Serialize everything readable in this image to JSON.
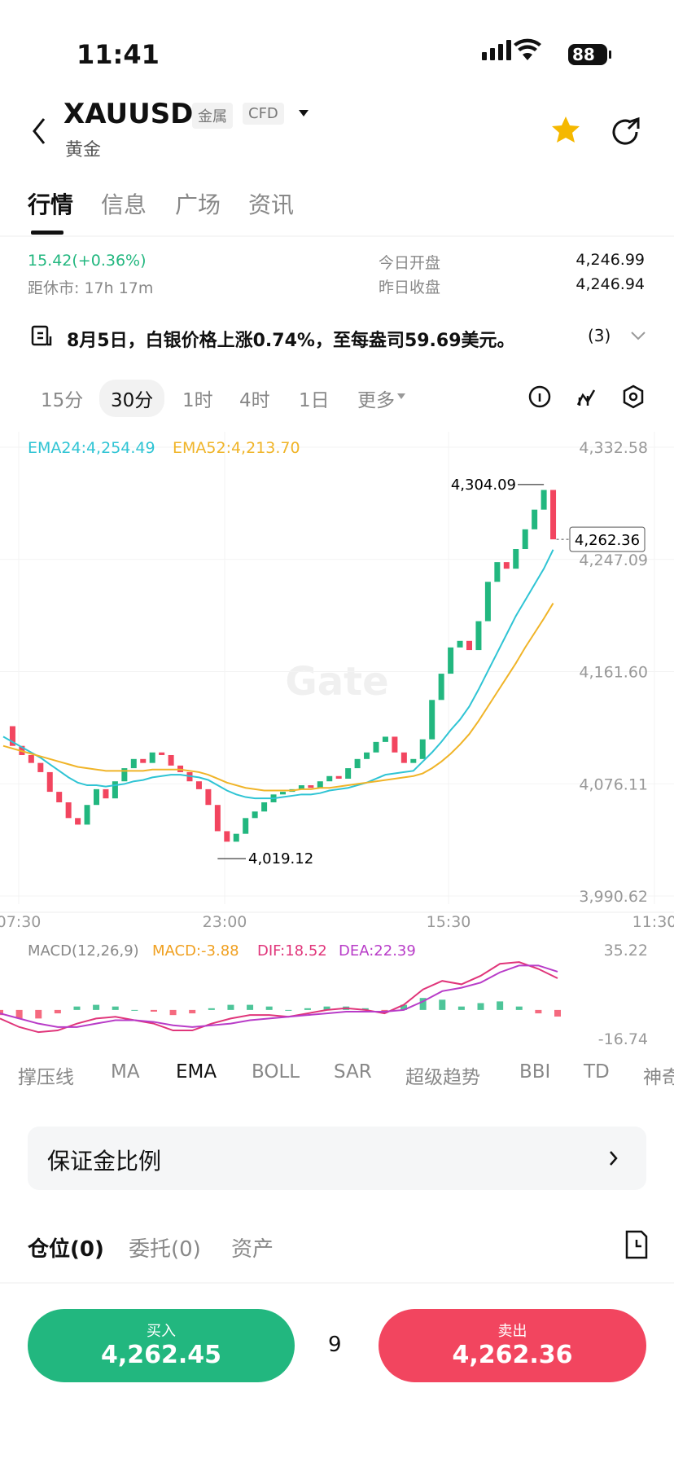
{
  "status_bar": {
    "time": "11:41",
    "battery": "88"
  },
  "header": {
    "symbol": "XAUUSD",
    "tags": [
      "金属",
      "CFD"
    ],
    "name": "黄金"
  },
  "tabs": {
    "items": [
      "行情",
      "信息",
      "广场",
      "资讯"
    ],
    "selected": 0
  },
  "summary": {
    "change": "15.42(+0.36%)",
    "close_in": "距休市: 17h 17m",
    "rows": [
      {
        "label": "今日开盘",
        "value": "4,246.99"
      },
      {
        "label": "昨日收盘",
        "value": "4,246.94"
      }
    ]
  },
  "news": {
    "text": "8月5日，白银价格上涨0.74%，至每盎司59.69美元。",
    "count": "(3)"
  },
  "timeframes": {
    "items": [
      "15分",
      "30分",
      "1时",
      "4时",
      "1日",
      "更多"
    ],
    "selected": 1
  },
  "chart": {
    "watermark": "Gate",
    "xticks": [
      "07:30",
      "23:00",
      "15:30",
      "11:30"
    ],
    "price": {
      "ylim": [
        3990.62,
        4332.58
      ],
      "yticks": [
        {
          "value": 4332.58,
          "label": "4,332.58"
        },
        {
          "value": 4247.09,
          "label": "4,247.09"
        },
        {
          "value": 4161.6,
          "label": "4,161.60"
        },
        {
          "value": 4076.11,
          "label": "4,076.11"
        },
        {
          "value": 3990.62,
          "label": "3,990.62"
        }
      ],
      "up_color": "#22b77f",
      "down_color": "#f2455f",
      "close": [
        4120,
        4105,
        4098,
        4092,
        4085,
        4070,
        4062,
        4050,
        4045,
        4060,
        4072,
        4065,
        4078,
        4088,
        4095,
        4092,
        4100,
        4098,
        4090,
        4085,
        4078,
        4072,
        4060,
        4040,
        4032,
        4038,
        4050,
        4055,
        4062,
        4068,
        4070,
        4072,
        4075,
        4073,
        4078,
        4082,
        4080,
        4088,
        4095,
        4100,
        4108,
        4112,
        4100,
        4092,
        4095,
        4110,
        4140,
        4160,
        4180,
        4185,
        4178,
        4200,
        4230,
        4245,
        4240,
        4255,
        4270,
        4285,
        4300,
        4262.36
      ],
      "series": [
        {
          "name": "EMA24:4,254.49",
          "color": "#2fc4d4",
          "values": [
            4112,
            4108,
            4104,
            4100,
            4096,
            4091,
            4086,
            4081,
            4077,
            4075,
            4075,
            4074,
            4075,
            4076,
            4078,
            4079,
            4081,
            4082,
            4083,
            4083,
            4082,
            4081,
            4079,
            4075,
            4071,
            4068,
            4066,
            4065,
            4065,
            4065,
            4066,
            4067,
            4068,
            4068,
            4069,
            4071,
            4072,
            4073,
            4075,
            4077,
            4080,
            4083,
            4084,
            4085,
            4086,
            4093,
            4100,
            4108,
            4117,
            4125,
            4135,
            4148,
            4162,
            4176,
            4190,
            4204,
            4216,
            4228,
            4240,
            4254.49
          ]
        },
        {
          "name": "EMA52:4,213.70",
          "color": "#f0b428",
          "values": [
            4105,
            4103,
            4101,
            4099,
            4097,
            4095,
            4093,
            4091,
            4089,
            4088,
            4087,
            4086,
            4086,
            4086,
            4086,
            4086,
            4087,
            4087,
            4087,
            4087,
            4086,
            4085,
            4083,
            4080,
            4077,
            4075,
            4073,
            4072,
            4071,
            4071,
            4071,
            4071,
            4072,
            4072,
            4073,
            4073,
            4074,
            4075,
            4076,
            4077,
            4078,
            4079,
            4080,
            4081,
            4082,
            4084,
            4088,
            4093,
            4099,
            4106,
            4114,
            4124,
            4135,
            4146,
            4157,
            4168,
            4180,
            4191,
            4202,
            4213.7
          ]
        }
      ],
      "high": {
        "value": 4304.09,
        "label": "4,304.09"
      },
      "low": {
        "value": 4019.12,
        "label": "4,019.12"
      },
      "last": {
        "value": 4262.36,
        "label": "4,262.36"
      }
    },
    "macd": {
      "title": "MACD(12,26,9)",
      "ylim": [
        -16.74,
        35.22
      ],
      "yticks": [
        35.22,
        -16.74
      ],
      "hist": {
        "name": "MACD:-3.88",
        "color": "#f0a020",
        "up_color": "#22b77f",
        "down_color": "#f2455f",
        "values": [
          -3,
          -5,
          -5,
          -2,
          2,
          3,
          2,
          0,
          -1,
          -3,
          -2,
          1,
          3,
          3,
          2,
          0,
          1,
          2,
          2,
          1,
          -1,
          3,
          7,
          6,
          2,
          4,
          5,
          2,
          -2,
          -3.88
        ]
      },
      "series": [
        {
          "name": "DIF:18.52",
          "color": "#e0357a",
          "values": [
            -5,
            -10,
            -13,
            -12,
            -8,
            -5,
            -4,
            -6,
            -8,
            -12,
            -12,
            -8,
            -5,
            -3,
            -3,
            -4,
            -2,
            0,
            1,
            0,
            -2,
            3,
            12,
            17,
            15,
            20,
            27,
            28,
            24,
            18.52
          ]
        },
        {
          "name": "DEA:22.39",
          "color": "#b83cc8",
          "values": [
            -2,
            -5,
            -8,
            -10,
            -10,
            -8,
            -6,
            -6,
            -7,
            -9,
            -10,
            -9,
            -8,
            -6,
            -5,
            -4,
            -3,
            -2,
            -1,
            -1,
            -1,
            0,
            5,
            11,
            13,
            16,
            22,
            26,
            26,
            22.39
          ]
        }
      ]
    }
  },
  "indicators": {
    "items": [
      "撑压线",
      "MA",
      "EMA",
      "BOLL",
      "SAR",
      "超级趋势",
      "BBI",
      "TD",
      "神奇"
    ],
    "selected": 2
  },
  "margin": {
    "label": "保证金比例"
  },
  "positions": {
    "tabs": [
      "仓位(0)",
      "委托(0)",
      "资产"
    ],
    "selected": 0
  },
  "trade": {
    "buy": {
      "label": "买入",
      "price": "4,262.45"
    },
    "spread": "9",
    "sell": {
      "label": "卖出",
      "price": "4,262.36"
    }
  }
}
